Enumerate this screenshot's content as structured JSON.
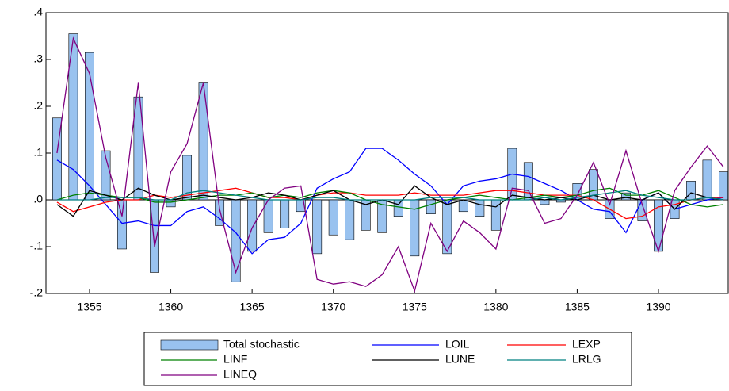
{
  "chart_data": {
    "type": "combo",
    "x": [
      1353,
      1354,
      1355,
      1356,
      1357,
      1358,
      1359,
      1360,
      1361,
      1362,
      1363,
      1364,
      1365,
      1366,
      1367,
      1368,
      1369,
      1370,
      1371,
      1372,
      1373,
      1374,
      1375,
      1376,
      1377,
      1378,
      1379,
      1380,
      1381,
      1382,
      1383,
      1384,
      1385,
      1386,
      1387,
      1388,
      1389,
      1390,
      1391,
      1392,
      1393,
      1394
    ],
    "xlim": [
      1352.32,
      1394.29
    ],
    "xticks": [
      1355,
      1360,
      1365,
      1370,
      1375,
      1380,
      1385,
      1390
    ],
    "ylim": [
      -0.2,
      0.4
    ],
    "yticks": [
      {
        "value": -0.2,
        "label": "-.2"
      },
      {
        "value": -0.1,
        "label": "-.1"
      },
      {
        "value": 0,
        "label": ".0"
      },
      {
        "value": 0.1,
        "label": ".1"
      },
      {
        "value": 0.2,
        "label": ".2"
      },
      {
        "value": 0.3,
        "label": ".3"
      },
      {
        "value": 0.4,
        "label": ".4"
      }
    ],
    "series": [
      {
        "name": "Total stochastic",
        "type": "bar",
        "color": "#99c2ef",
        "values": [
          0.175,
          0.355,
          0.315,
          0.105,
          -0.105,
          0.22,
          -0.155,
          -0.015,
          0.095,
          0.25,
          -0.055,
          -0.175,
          -0.11,
          -0.07,
          -0.06,
          -0.025,
          -0.115,
          -0.075,
          -0.085,
          -0.065,
          -0.07,
          -0.035,
          -0.12,
          -0.03,
          -0.115,
          -0.025,
          -0.035,
          -0.065,
          0.11,
          0.08,
          -0.01,
          -0.005,
          0.035,
          0.065,
          -0.04,
          0.015,
          -0.045,
          -0.11,
          -0.04,
          0.04,
          0.085,
          0.06
        ]
      },
      {
        "name": "LOIL",
        "type": "line",
        "color": "#0000ff",
        "values": [
          0.085,
          0.065,
          0.03,
          -0.01,
          -0.05,
          -0.045,
          -0.055,
          -0.055,
          -0.025,
          -0.015,
          -0.04,
          -0.07,
          -0.115,
          -0.085,
          -0.08,
          -0.05,
          0.025,
          0.045,
          0.06,
          0.11,
          0.11,
          0.085,
          0.055,
          0.03,
          -0.01,
          0.03,
          0.04,
          0.045,
          0.055,
          0.05,
          0.035,
          0.02,
          0.0,
          -0.02,
          -0.025,
          -0.07,
          0.0,
          0.015,
          -0.02,
          -0.01,
          0.0,
          0.005
        ]
      },
      {
        "name": "LEXP",
        "type": "line",
        "color": "#ff0000",
        "values": [
          -0.005,
          -0.025,
          -0.015,
          -0.005,
          0.0,
          0.0,
          0.01,
          0.005,
          0.01,
          0.015,
          0.02,
          0.025,
          0.015,
          0.005,
          0.005,
          0.0,
          0.01,
          0.015,
          0.015,
          0.01,
          0.01,
          0.01,
          0.015,
          0.01,
          0.01,
          0.01,
          0.015,
          0.02,
          0.02,
          0.015,
          0.01,
          0.01,
          0.01,
          0.0,
          -0.02,
          -0.04,
          -0.035,
          -0.015,
          -0.01,
          0.0,
          0.005,
          0.005
        ]
      },
      {
        "name": "LINF",
        "type": "line",
        "color": "#008000",
        "values": [
          0.0,
          0.01,
          0.015,
          0.01,
          0.005,
          0.005,
          -0.005,
          -0.005,
          0.0,
          0.005,
          0.01,
          0.01,
          0.015,
          0.005,
          0.01,
          0.005,
          0.015,
          0.02,
          0.015,
          0.0,
          -0.01,
          -0.015,
          -0.02,
          -0.01,
          0.0,
          0.005,
          0.01,
          0.005,
          0.0,
          0.005,
          0.01,
          0.005,
          0.01,
          0.02,
          0.025,
          0.01,
          0.01,
          0.02,
          0.005,
          -0.01,
          -0.015,
          -0.01
        ]
      },
      {
        "name": "LUNE",
        "type": "line",
        "color": "#000000",
        "values": [
          -0.01,
          -0.035,
          0.02,
          0.01,
          0.0,
          0.025,
          0.01,
          0.0,
          0.005,
          0.01,
          0.005,
          0.0,
          0.005,
          0.015,
          0.01,
          0.0,
          0.01,
          0.02,
          0.0,
          -0.01,
          0.0,
          -0.01,
          0.03,
          0.005,
          -0.01,
          0.0,
          -0.01,
          -0.015,
          0.01,
          0.005,
          0.0,
          0.005,
          0.0,
          0.01,
          0.0,
          0.005,
          0.0,
          0.015,
          -0.02,
          0.015,
          0.005,
          0.0
        ]
      },
      {
        "name": "LRLG",
        "type": "line",
        "color": "#008080",
        "values": [
          0.0,
          0.0,
          0.0,
          0.005,
          0.005,
          0.005,
          0.0,
          0.0,
          0.015,
          0.02,
          0.015,
          0.01,
          0.005,
          0.0,
          0.0,
          0.0,
          0.005,
          0.005,
          0.0,
          0.0,
          0.0,
          0.0,
          0.0,
          0.005,
          0.005,
          0.005,
          0.0,
          0.0,
          0.0,
          0.0,
          0.005,
          0.0,
          0.005,
          0.01,
          0.015,
          0.02,
          0.01,
          0.005,
          0.0,
          0.0,
          0.005,
          0.0
        ]
      },
      {
        "name": "LINEQ",
        "type": "line",
        "color": "#800080",
        "values": [
          0.1,
          0.345,
          0.27,
          0.09,
          -0.035,
          0.25,
          -0.1,
          0.06,
          0.12,
          0.25,
          -0.02,
          -0.155,
          -0.06,
          0.0,
          0.025,
          0.03,
          -0.17,
          -0.18,
          -0.175,
          -0.185,
          -0.16,
          -0.1,
          -0.195,
          -0.05,
          -0.11,
          -0.045,
          -0.07,
          -0.105,
          0.025,
          0.02,
          -0.05,
          -0.04,
          0.01,
          0.08,
          -0.01,
          0.105,
          -0.01,
          -0.11,
          0.02,
          0.07,
          0.115,
          0.07
        ]
      }
    ]
  }
}
